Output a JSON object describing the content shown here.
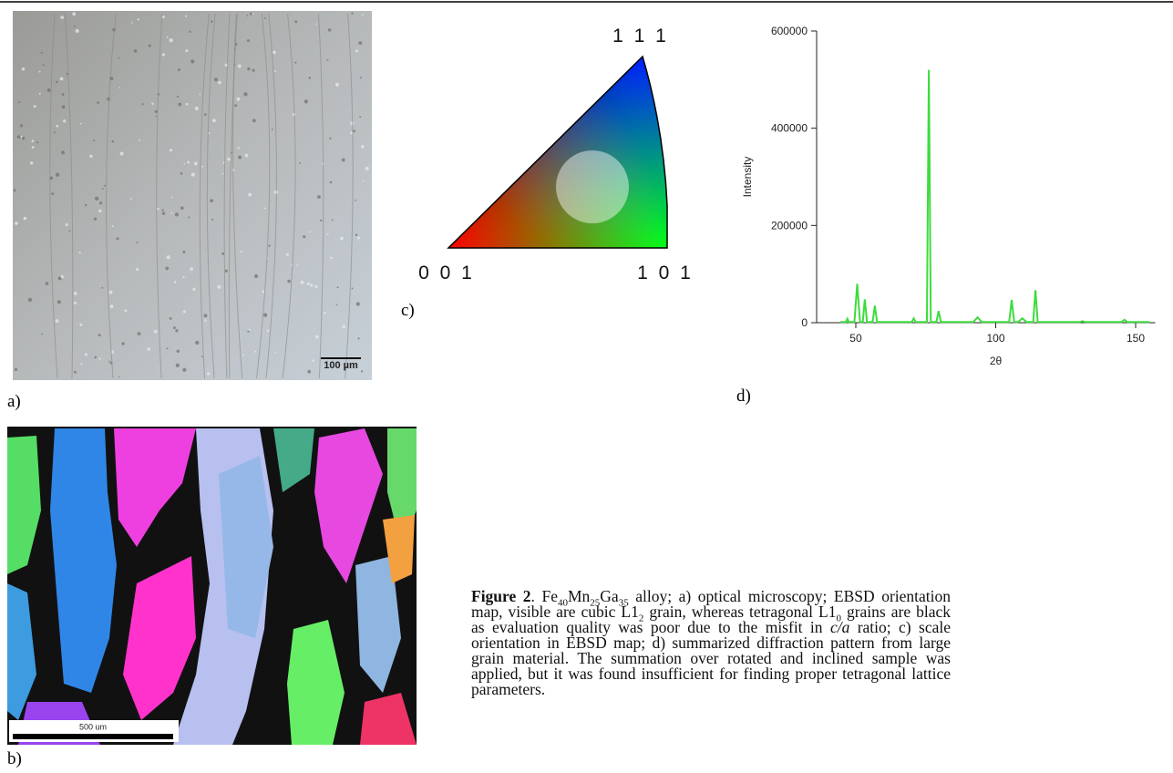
{
  "panels": {
    "a": {
      "label": "a)",
      "scale_bar": "100 µm"
    },
    "b": {
      "label": "b)",
      "scale_bar": "500 um"
    },
    "c": {
      "label": "c)",
      "corners": [
        "1 1 1",
        "0 0 1",
        "1 0 1"
      ]
    },
    "d": {
      "label": "d)"
    }
  },
  "chart_data": {
    "type": "line",
    "x_label": "2θ",
    "y_label": "Intensity",
    "x": [
      44.5,
      46.5,
      47,
      47.5,
      49.5,
      50.5,
      51.5,
      52.5,
      53.2,
      54,
      56,
      56.8,
      57.6,
      62,
      70,
      70.7,
      71.4,
      73,
      74,
      75.4,
      76.1,
      76.8,
      78.8,
      79.6,
      80.4,
      92,
      93.5,
      95,
      104.8,
      105.7,
      106.6,
      108,
      109.5,
      111,
      113.4,
      114.2,
      115,
      130,
      131,
      132,
      145,
      146,
      147,
      155
    ],
    "values": [
      1500,
      1500,
      8000,
      1500,
      1500,
      80000,
      1500,
      1500,
      48000,
      1500,
      1500,
      35000,
      1500,
      1500,
      1500,
      9000,
      1500,
      1500,
      1500,
      1500,
      520000,
      1500,
      1500,
      24000,
      1500,
      1500,
      11000,
      1500,
      1500,
      47000,
      1500,
      1500,
      9000,
      1500,
      1500,
      67000,
      1500,
      1500,
      3000,
      1500,
      1500,
      6000,
      1500,
      1500
    ],
    "color": "#3ddc3d",
    "xlim": [
      36,
      157
    ],
    "xticks": [
      50,
      100,
      150
    ],
    "ylim": [
      0,
      600000
    ],
    "yticks": [
      0,
      200000,
      400000,
      600000
    ]
  },
  "caption": [
    "Figure 2",
    ". Fe",
    "40",
    "Mn",
    "25",
    "Ga",
    "35",
    " alloy; a) optical microscopy; EBSD orientation map, visible are cubic L1",
    "2",
    " grain, whereas tetragonal L1",
    "0",
    " grains are black as evaluation quality was poor due to the misfit in ",
    "c/a",
    " ratio; c) scale orientation in EBSD map; d) summarized diffraction pattern from large grain material. The summation over rotated and inclined sample was applied, but it was found insufficient for finding proper tetragonal lattice parameters."
  ]
}
